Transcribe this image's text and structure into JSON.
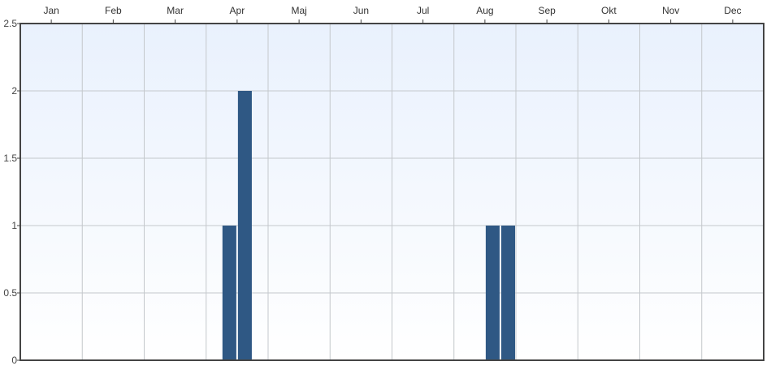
{
  "chart_data": {
    "type": "bar",
    "categories": [
      "Jan",
      "Feb",
      "Mar",
      "Apr",
      "Maj",
      "Jun",
      "Jul",
      "Aug",
      "Sep",
      "Okt",
      "Nov",
      "Dec"
    ],
    "x_unit": "week",
    "x_range": [
      1,
      48
    ],
    "values": [
      {
        "week": 14,
        "value": 1
      },
      {
        "week": 15,
        "value": 2
      },
      {
        "week": 31,
        "value": 1
      },
      {
        "week": 32,
        "value": 1
      }
    ],
    "title": "",
    "xlabel": "",
    "ylabel": "",
    "ylim": [
      0,
      2.5
    ],
    "yticks": [
      "0",
      "0.5",
      "1",
      "1.5",
      "2",
      "2.5"
    ],
    "grid": true,
    "legend": "none",
    "x_axis_position": "top",
    "colors": {
      "bar": "#2f5884",
      "plot_background_top": "#e9f1fd",
      "plot_background_bottom": "#ffffff",
      "grid": "#c4c8cc",
      "frame": "#444444"
    }
  }
}
